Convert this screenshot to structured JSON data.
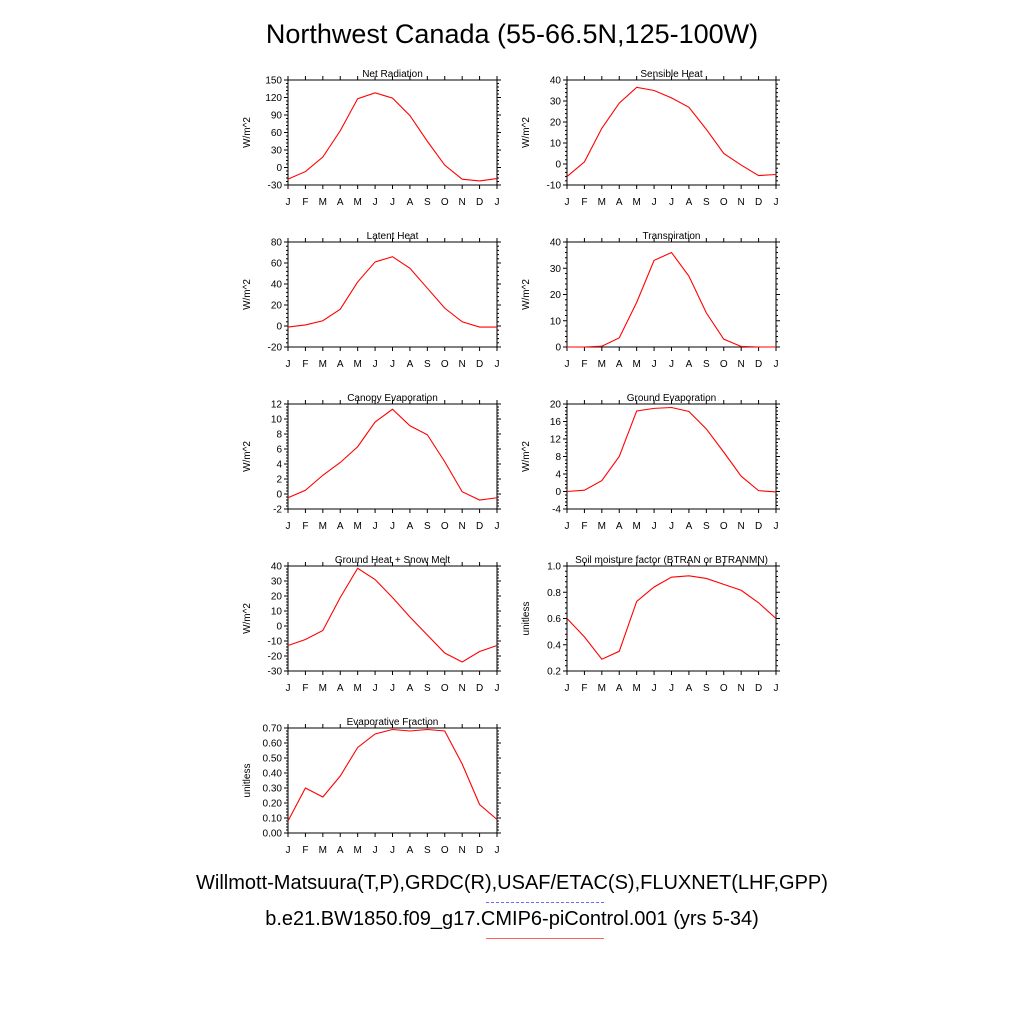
{
  "title": "Northwest Canada (55-66.5N,125-100W)",
  "legend": {
    "obs_label": "Willmott-Matsuura(T,P),GRDC(R),USAF/ETAC(S),FLUXNET(LHF,GPP)",
    "obs_color": "#6a6aff",
    "model_label": "b.e21.BW1850.f09_g17.CMIP6-piControl.001 (yrs 5-34)",
    "model_color": "#ff0000"
  },
  "chart_data": [
    {
      "type": "line",
      "title": "Net Radiation",
      "ylabel": "W/m^2",
      "x": [
        "J",
        "F",
        "M",
        "A",
        "M",
        "J",
        "J",
        "A",
        "S",
        "O",
        "N",
        "D",
        "J"
      ],
      "ylim": [
        -30,
        150
      ],
      "yticks": [
        -30,
        0,
        30,
        60,
        90,
        120,
        150
      ],
      "series": [
        {
          "color": "#ff0000",
          "values": [
            -20,
            -7,
            18,
            63,
            118,
            128,
            119,
            89,
            45,
            4,
            -20,
            -23,
            -19
          ]
        }
      ]
    },
    {
      "type": "line",
      "title": "Sensible Heat",
      "ylabel": "W/m^2",
      "x": [
        "J",
        "F",
        "M",
        "A",
        "M",
        "J",
        "J",
        "A",
        "S",
        "O",
        "N",
        "D",
        "J"
      ],
      "ylim": [
        -10,
        40
      ],
      "yticks": [
        -10,
        0,
        10,
        20,
        30,
        40
      ],
      "series": [
        {
          "color": "#ff0000",
          "values": [
            -6,
            1,
            17,
            29,
            36.5,
            35,
            31.5,
            27,
            16.5,
            5,
            -0.5,
            -5.5,
            -5
          ]
        }
      ]
    },
    {
      "type": "line",
      "title": "Latent Heat",
      "ylabel": "W/m^2",
      "x": [
        "J",
        "F",
        "M",
        "A",
        "M",
        "J",
        "J",
        "A",
        "S",
        "O",
        "N",
        "D",
        "J"
      ],
      "ylim": [
        -20,
        80
      ],
      "yticks": [
        -20,
        0,
        20,
        40,
        60,
        80
      ],
      "series": [
        {
          "color": "#ff0000",
          "values": [
            -1,
            1,
            5,
            16,
            42,
            61,
            66,
            55,
            36,
            17,
            4,
            -1,
            -1
          ]
        }
      ]
    },
    {
      "type": "line",
      "title": "Transpiration",
      "ylabel": "W/m^2",
      "x": [
        "J",
        "F",
        "M",
        "A",
        "M",
        "J",
        "J",
        "A",
        "S",
        "O",
        "N",
        "D",
        "J"
      ],
      "ylim": [
        0,
        40
      ],
      "yticks": [
        0,
        10,
        20,
        30,
        40
      ],
      "series": [
        {
          "color": "#ff0000",
          "values": [
            0,
            0,
            0.3,
            3.5,
            17,
            33,
            36,
            27,
            13,
            3,
            0.2,
            0,
            0
          ]
        }
      ]
    },
    {
      "type": "line",
      "title": "Canopy Evaporation",
      "ylabel": "W/m^2",
      "x": [
        "J",
        "F",
        "M",
        "A",
        "M",
        "J",
        "J",
        "A",
        "S",
        "O",
        "N",
        "D",
        "J"
      ],
      "ylim": [
        -2,
        12
      ],
      "yticks": [
        -2,
        0,
        2,
        4,
        6,
        8,
        10,
        12
      ],
      "series": [
        {
          "color": "#ff0000",
          "values": [
            -0.5,
            0.5,
            2.5,
            4.2,
            6.3,
            9.6,
            11.3,
            9.1,
            7.9,
            4.3,
            0.3,
            -0.8,
            -0.5
          ]
        }
      ]
    },
    {
      "type": "line",
      "title": "Ground Evaporation",
      "ylabel": "W/m^2",
      "x": [
        "J",
        "F",
        "M",
        "A",
        "M",
        "J",
        "J",
        "A",
        "S",
        "O",
        "N",
        "D",
        "J"
      ],
      "ylim": [
        -4,
        20
      ],
      "yticks": [
        -4,
        0,
        4,
        8,
        12,
        16,
        20
      ],
      "series": [
        {
          "color": "#ff0000",
          "values": [
            0,
            0.3,
            2.5,
            8,
            18.4,
            19,
            19.2,
            18.3,
            14.3,
            9,
            3.5,
            0.2,
            -0.1
          ]
        }
      ]
    },
    {
      "type": "line",
      "title": "Ground Heat + Snow Melt",
      "ylabel": "W/m^2",
      "x": [
        "J",
        "F",
        "M",
        "A",
        "M",
        "J",
        "J",
        "A",
        "S",
        "O",
        "N",
        "D",
        "J"
      ],
      "ylim": [
        -30,
        40
      ],
      "yticks": [
        -30,
        -20,
        -10,
        0,
        10,
        20,
        30,
        40
      ],
      "series": [
        {
          "color": "#ff0000",
          "values": [
            -13,
            -9,
            -3,
            19,
            38.5,
            31,
            19,
            6,
            -6,
            -18,
            -24,
            -17,
            -13
          ]
        }
      ]
    },
    {
      "type": "line",
      "title": "Soil moisture factor (BTRAN or BTRANMN)",
      "ylabel": "unitless",
      "x": [
        "J",
        "F",
        "M",
        "A",
        "M",
        "J",
        "J",
        "A",
        "S",
        "O",
        "N",
        "D",
        "J"
      ],
      "ylim": [
        0.2,
        1.0
      ],
      "yticks": [
        "0.2",
        "0.4",
        "0.6",
        "0.8",
        "1.0"
      ],
      "series": [
        {
          "color": "#ff0000",
          "values": [
            0.6,
            0.46,
            0.29,
            0.35,
            0.73,
            0.84,
            0.915,
            0.925,
            0.905,
            0.86,
            0.815,
            0.72,
            0.6
          ]
        }
      ]
    },
    {
      "type": "line",
      "title": "Evaporative Fraction",
      "ylabel": "unitless",
      "x": [
        "J",
        "F",
        "M",
        "A",
        "M",
        "J",
        "J",
        "A",
        "S",
        "O",
        "N",
        "D",
        "J"
      ],
      "ylim": [
        0.0,
        0.7
      ],
      "yticks": [
        "0.00",
        "0.10",
        "0.20",
        "0.30",
        "0.40",
        "0.50",
        "0.60",
        "0.70"
      ],
      "series": [
        {
          "color": "#ff0000",
          "values": [
            0.08,
            0.3,
            0.24,
            0.38,
            0.57,
            0.66,
            0.69,
            0.68,
            0.69,
            0.68,
            0.46,
            0.19,
            0.09
          ]
        }
      ]
    }
  ]
}
